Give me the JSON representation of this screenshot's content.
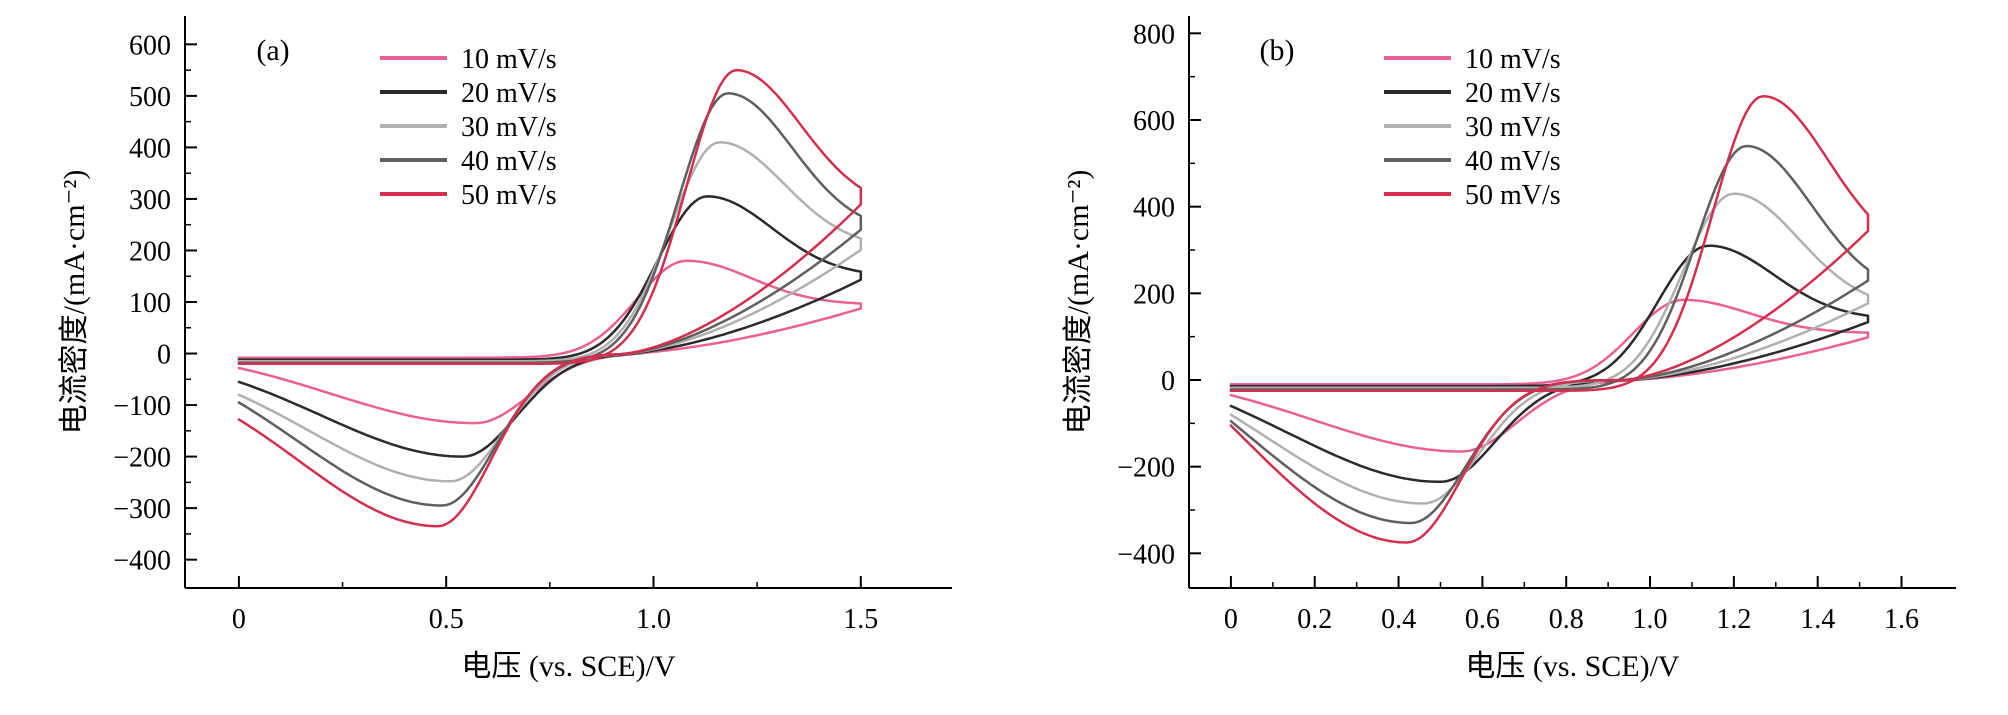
{
  "background": "#ffffff",
  "chart_data": [
    {
      "panel_label": "(a)",
      "type": "line",
      "title": "",
      "xlabel": "电压 (vs. SCE)/V",
      "ylabel": "电流密度/(mA·cm⁻²)",
      "legend_position": "top-left-inside",
      "grid": false,
      "x_domain": [
        -0.13,
        1.72
      ],
      "y_domain": [
        -455,
        655
      ],
      "x_ticks": [
        {
          "v": 0,
          "label": "0"
        },
        {
          "v": 0.5,
          "label": "0.5"
        },
        {
          "v": 1.0,
          "label": "1.0"
        },
        {
          "v": 1.5,
          "label": "1.5"
        }
      ],
      "y_ticks": [
        {
          "v": -400,
          "label": "−400"
        },
        {
          "v": -300,
          "label": "−300"
        },
        {
          "v": -200,
          "label": "−200"
        },
        {
          "v": -100,
          "label": "−100"
        },
        {
          "v": 0,
          "label": "0"
        },
        {
          "v": 100,
          "label": "100"
        },
        {
          "v": 200,
          "label": "200"
        },
        {
          "v": 300,
          "label": "300"
        },
        {
          "v": 400,
          "label": "400"
        },
        {
          "v": 500,
          "label": "500"
        },
        {
          "v": 600,
          "label": "600"
        }
      ],
      "x_minor_step": 0.25,
      "y_minor_step": 50,
      "sweep": {
        "x_start": 0,
        "x_end": 1.5,
        "zero_cross": 0.92
      },
      "series": [
        {
          "label": "10 mV/s",
          "color": "#ec5f94",
          "anodic_peak": {
            "E": 1.08,
            "i": 180
          },
          "cathodic_peak": {
            "E": 0.57,
            "i": -135
          },
          "start_current": -8,
          "tail_current": 95,
          "switch_current": 105,
          "end_current": -28
        },
        {
          "label": "20 mV/s",
          "color": "#2b2b2b",
          "anodic_peak": {
            "E": 1.13,
            "i": 305
          },
          "cathodic_peak": {
            "E": 0.54,
            "i": -200
          },
          "start_current": -12,
          "tail_current": 150,
          "switch_current": 170,
          "end_current": -55
        },
        {
          "label": "30 mV/s",
          "color": "#b0b0b0",
          "anodic_peak": {
            "E": 1.16,
            "i": 410
          },
          "cathodic_peak": {
            "E": 0.51,
            "i": -248
          },
          "start_current": -15,
          "tail_current": 205,
          "switch_current": 240,
          "end_current": -80
        },
        {
          "label": "40 mV/s",
          "color": "#5f5f5f",
          "anodic_peak": {
            "E": 1.18,
            "i": 505
          },
          "cathodic_peak": {
            "E": 0.49,
            "i": -295
          },
          "start_current": -18,
          "tail_current": 235,
          "switch_current": 280,
          "end_current": -95
        },
        {
          "label": "50 mV/s",
          "color": "#d2304e",
          "anodic_peak": {
            "E": 1.2,
            "i": 550
          },
          "cathodic_peak": {
            "E": 0.48,
            "i": -335
          },
          "start_current": -20,
          "tail_current": 280,
          "switch_current": 320,
          "end_current": -128
        }
      ]
    },
    {
      "panel_label": "(b)",
      "type": "line",
      "title": "",
      "xlabel": "电压 (vs. SCE)/V",
      "ylabel": "电流密度/(mA·cm⁻²)",
      "legend_position": "top-left-inside",
      "grid": false,
      "x_domain": [
        -0.1,
        1.73
      ],
      "y_domain": [
        -480,
        840
      ],
      "x_ticks": [
        {
          "v": 0,
          "label": "0"
        },
        {
          "v": 0.2,
          "label": "0.2"
        },
        {
          "v": 0.4,
          "label": "0.4"
        },
        {
          "v": 0.6,
          "label": "0.6"
        },
        {
          "v": 0.8,
          "label": "0.8"
        },
        {
          "v": 1.0,
          "label": "1.0"
        },
        {
          "v": 1.2,
          "label": "1.2"
        },
        {
          "v": 1.4,
          "label": "1.4"
        },
        {
          "v": 1.6,
          "label": "1.6"
        }
      ],
      "y_ticks": [
        {
          "v": -400,
          "label": "−400"
        },
        {
          "v": -200,
          "label": "−200"
        },
        {
          "v": 0,
          "label": "0"
        },
        {
          "v": 200,
          "label": "200"
        },
        {
          "v": 400,
          "label": "400"
        },
        {
          "v": 600,
          "label": "600"
        },
        {
          "v": 800,
          "label": "800"
        }
      ],
      "x_minor_step": 0.1,
      "y_minor_step": 100,
      "sweep": {
        "x_start": 0,
        "x_end": 1.52,
        "zero_cross": 0.93
      },
      "series": [
        {
          "label": "10 mV/s",
          "color": "#ec5f94",
          "anodic_peak": {
            "E": 1.08,
            "i": 185
          },
          "cathodic_peak": {
            "E": 0.55,
            "i": -165
          },
          "start_current": -10,
          "tail_current": 108,
          "switch_current": 120,
          "end_current": -35
        },
        {
          "label": "20 mV/s",
          "color": "#2b2b2b",
          "anodic_peak": {
            "E": 1.14,
            "i": 310
          },
          "cathodic_peak": {
            "E": 0.5,
            "i": -235
          },
          "start_current": -14,
          "tail_current": 140,
          "switch_current": 165,
          "end_current": -60
        },
        {
          "label": "30 mV/s",
          "color": "#b0b0b0",
          "anodic_peak": {
            "E": 1.2,
            "i": 430
          },
          "cathodic_peak": {
            "E": 0.46,
            "i": -285
          },
          "start_current": -18,
          "tail_current": 165,
          "switch_current": 200,
          "end_current": -80
        },
        {
          "label": "40 mV/s",
          "color": "#5f5f5f",
          "anodic_peak": {
            "E": 1.23,
            "i": 540
          },
          "cathodic_peak": {
            "E": 0.43,
            "i": -330
          },
          "start_current": -22,
          "tail_current": 195,
          "switch_current": 255,
          "end_current": -95
        },
        {
          "label": "50 mV/s",
          "color": "#d2304e",
          "anodic_peak": {
            "E": 1.27,
            "i": 655
          },
          "cathodic_peak": {
            "E": 0.42,
            "i": -375
          },
          "start_current": -25,
          "tail_current": 280,
          "switch_current": 385,
          "end_current": -105
        }
      ]
    }
  ]
}
